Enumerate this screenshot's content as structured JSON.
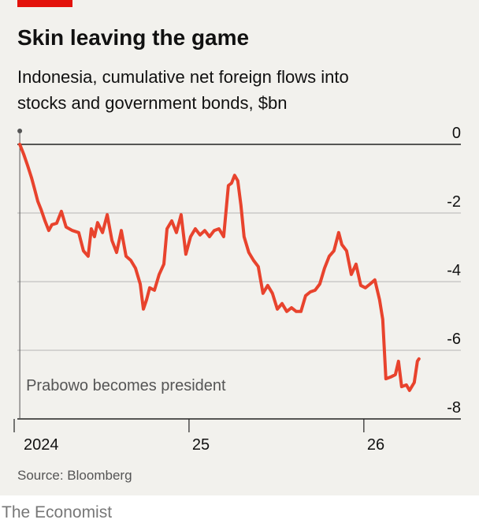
{
  "chart_data": {
    "type": "line",
    "title": "Skin leaving the game",
    "subtitle": [
      "Indonesia, cumulative net foreign flows into",
      "stocks and government bonds, $bn"
    ],
    "source": "Source: Bloomberg",
    "color": "#e8432d",
    "annotation": {
      "text": "Prabowo becomes president",
      "x": 2024.032
    },
    "x": [
      2024.032,
      2024.054,
      2024.077,
      2024.099,
      2024.117,
      2024.135,
      2024.153,
      2024.176,
      2024.198,
      2024.216,
      2024.243,
      2024.27,
      2024.297,
      2024.333,
      2024.369,
      2024.396,
      2024.423,
      2024.441,
      2024.459,
      2024.477,
      2024.505,
      2024.532,
      2024.559,
      2024.586,
      2024.613,
      2024.64,
      2024.667,
      2024.694,
      2024.721,
      2024.739,
      2024.757,
      2024.775,
      2024.802,
      2024.829,
      2024.856,
      2024.874,
      2024.901,
      2024.928,
      2024.955,
      2024.982,
      2025.009,
      2025.036,
      2025.063,
      2025.09,
      2025.117,
      2025.144,
      2025.171,
      2025.198,
      2025.225,
      2025.243,
      2025.261,
      2025.279,
      2025.297,
      2025.315,
      2025.342,
      2025.369,
      2025.396,
      2025.423,
      2025.45,
      2025.477,
      2025.505,
      2025.532,
      2025.559,
      2025.586,
      2025.613,
      2025.64,
      2025.667,
      2025.694,
      2025.721,
      2025.748,
      2025.775,
      2025.802,
      2025.829,
      2025.856,
      2025.874,
      2025.901,
      2025.928,
      2025.955,
      2025.982,
      2026.009,
      2026.036,
      2026.063,
      2026.09,
      2026.108,
      2026.126,
      2026.153,
      2026.18,
      2026.198,
      2026.216,
      2026.243,
      2026.261,
      2026.288,
      2026.306,
      2026.315
    ],
    "values": [
      0,
      -0.28,
      -0.62,
      -0.97,
      -1.31,
      -1.66,
      -1.89,
      -2.23,
      -2.51,
      -2.34,
      -2.3,
      -1.95,
      -2.41,
      -2.51,
      -2.57,
      -3.1,
      -3.26,
      -2.46,
      -2.69,
      -2.28,
      -2.57,
      -2.05,
      -2.8,
      -3.15,
      -2.51,
      -3.26,
      -3.38,
      -3.61,
      -4.07,
      -4.8,
      -4.53,
      -4.18,
      -4.25,
      -3.79,
      -3.49,
      -2.46,
      -2.23,
      -2.57,
      -2.05,
      -3.2,
      -2.69,
      -2.46,
      -2.64,
      -2.51,
      -2.69,
      -2.51,
      -2.46,
      -2.69,
      -1.2,
      -1.13,
      -0.9,
      -1.06,
      -1.77,
      -2.69,
      -3.15,
      -3.38,
      -3.56,
      -4.34,
      -4.11,
      -4.34,
      -4.8,
      -4.64,
      -4.87,
      -4.76,
      -4.87,
      -4.87,
      -4.41,
      -4.3,
      -4.25,
      -4.07,
      -3.61,
      -3.26,
      -3.1,
      -2.57,
      -2.92,
      -3.1,
      -3.79,
      -3.49,
      -4.11,
      -4.18,
      -4.07,
      -3.95,
      -4.53,
      -5.1,
      -6.83,
      -6.78,
      -6.71,
      -6.32,
      -7.06,
      -7.01,
      -7.17,
      -6.94,
      -6.32,
      -6.25
    ],
    "xlim": [
      2024,
      2026.6
    ],
    "xticks": [
      {
        "value": 2024,
        "label": "2024"
      },
      {
        "value": 2025,
        "label": "25"
      },
      {
        "value": 2026,
        "label": "26"
      }
    ],
    "ylim": [
      -8,
      0
    ],
    "yticks": [
      0,
      -2,
      -4,
      -6,
      -8
    ],
    "grid": true
  },
  "brand": "The Economist"
}
